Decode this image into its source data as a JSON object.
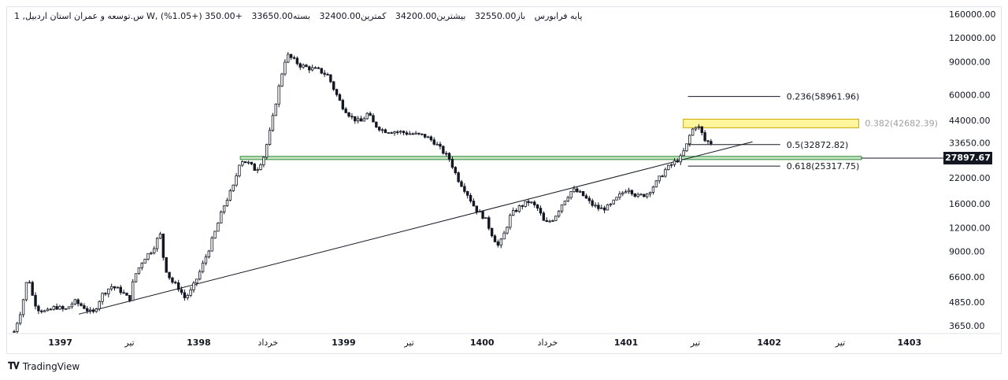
{
  "header": {
    "title": "1 ,س.توسعه و عمران استان اردبیل W, پایه فرابورس",
    "open": "باز32550.00",
    "high": "بیشترین34200.00",
    "low": "کمترین32400.00",
    "close": "بسته33650.00",
    "change": "+350.00 (+1.05%)"
  },
  "brand": {
    "name": "TradingView",
    "logo": "TV-logo-icon"
  },
  "price_tag": "27897.67",
  "chart_data": {
    "type": "candlestick",
    "title": "",
    "y_scale": "log",
    "y_ticks": [
      "160000.00",
      "120000.00",
      "90000.00",
      "60000.00",
      "44000.00",
      "33650.00",
      "22000.00",
      "16000.00",
      "12000.00",
      "9000.00",
      "6600.00",
      "4850.00",
      "3650.00"
    ],
    "y_tick_values": [
      160000,
      120000,
      90000,
      60000,
      44000,
      33650,
      22000,
      16000,
      12000,
      9000,
      6600,
      4850,
      3650
    ],
    "x_ticks": [
      {
        "label": "1397",
        "t": 0.05,
        "bold": true
      },
      {
        "label": "تیر",
        "t": 0.125,
        "bold": false
      },
      {
        "label": "1398",
        "t": 0.2,
        "bold": true
      },
      {
        "label": "خرداد",
        "t": 0.275,
        "bold": false
      },
      {
        "label": "1399",
        "t": 0.357,
        "bold": true
      },
      {
        "label": "تیر",
        "t": 0.428,
        "bold": false
      },
      {
        "label": "1400",
        "t": 0.507,
        "bold": true
      },
      {
        "label": "خرداد",
        "t": 0.578,
        "bold": false
      },
      {
        "label": "1401",
        "t": 0.663,
        "bold": true
      },
      {
        "label": "تیر",
        "t": 0.738,
        "bold": false
      },
      {
        "label": "1402",
        "t": 0.818,
        "bold": true
      },
      {
        "label": "تیر",
        "t": 0.895,
        "bold": false
      },
      {
        "label": "1403",
        "t": 0.97,
        "bold": true
      }
    ],
    "last_price": 27897.67,
    "fibonacci": [
      {
        "label": "0.236(58961.96)",
        "value": 58961.96,
        "t_start": 0.73,
        "t_end": 0.83,
        "highlight": false
      },
      {
        "label": "0.382(42682.39)",
        "value": 42682.39,
        "t_start": 0.725,
        "t_end": 0.915,
        "highlight": true
      },
      {
        "label": "0.5(32872.82)",
        "value": 32872.82,
        "t_start": 0.73,
        "t_end": 0.83,
        "highlight": false
      },
      {
        "label": "0.618(25317.75)",
        "value": 25317.75,
        "t_start": 0.73,
        "t_end": 0.83,
        "highlight": false
      }
    ],
    "support_zone": {
      "low": 27400,
      "high": 28500,
      "t_start": 0.245,
      "t_end": 0.918
    },
    "trendline": {
      "t1": 0.07,
      "v1": 4200,
      "t2": 0.8,
      "v2": 34000
    },
    "price_path": [
      [
        0.0,
        3400
      ],
      [
        0.008,
        4500
      ],
      [
        0.015,
        6800
      ],
      [
        0.02,
        5200
      ],
      [
        0.025,
        4500
      ],
      [
        0.035,
        4300
      ],
      [
        0.045,
        4600
      ],
      [
        0.055,
        4400
      ],
      [
        0.065,
        4900
      ],
      [
        0.075,
        4600
      ],
      [
        0.085,
        4200
      ],
      [
        0.095,
        5300
      ],
      [
        0.105,
        5900
      ],
      [
        0.115,
        5600
      ],
      [
        0.125,
        5000
      ],
      [
        0.13,
        6600
      ],
      [
        0.14,
        8200
      ],
      [
        0.15,
        9200
      ],
      [
        0.158,
        11200
      ],
      [
        0.163,
        7500
      ],
      [
        0.17,
        6300
      ],
      [
        0.178,
        5800
      ],
      [
        0.185,
        5100
      ],
      [
        0.192,
        5600
      ],
      [
        0.2,
        6800
      ],
      [
        0.21,
        9000
      ],
      [
        0.218,
        11500
      ],
      [
        0.228,
        16000
      ],
      [
        0.238,
        20000
      ],
      [
        0.245,
        27500
      ],
      [
        0.255,
        26000
      ],
      [
        0.262,
        24000
      ],
      [
        0.27,
        28000
      ],
      [
        0.278,
        40000
      ],
      [
        0.285,
        60000
      ],
      [
        0.29,
        78000
      ],
      [
        0.295,
        98000
      ],
      [
        0.3,
        94000
      ],
      [
        0.31,
        86000
      ],
      [
        0.32,
        83000
      ],
      [
        0.33,
        81000
      ],
      [
        0.34,
        76000
      ],
      [
        0.348,
        62000
      ],
      [
        0.355,
        53000
      ],
      [
        0.365,
        46000
      ],
      [
        0.375,
        43000
      ],
      [
        0.383,
        48000
      ],
      [
        0.39,
        42000
      ],
      [
        0.4,
        39000
      ],
      [
        0.415,
        38500
      ],
      [
        0.43,
        37500
      ],
      [
        0.445,
        36500
      ],
      [
        0.455,
        34000
      ],
      [
        0.465,
        30000
      ],
      [
        0.472,
        27500
      ],
      [
        0.48,
        22000
      ],
      [
        0.49,
        18500
      ],
      [
        0.5,
        15000
      ],
      [
        0.51,
        13500
      ],
      [
        0.518,
        11000
      ],
      [
        0.525,
        9500
      ],
      [
        0.532,
        11500
      ],
      [
        0.538,
        14000
      ],
      [
        0.548,
        15500
      ],
      [
        0.558,
        16500
      ],
      [
        0.568,
        15000
      ],
      [
        0.575,
        12500
      ],
      [
        0.585,
        13500
      ],
      [
        0.595,
        16500
      ],
      [
        0.605,
        19000
      ],
      [
        0.615,
        18000
      ],
      [
        0.625,
        16000
      ],
      [
        0.635,
        15000
      ],
      [
        0.645,
        15500
      ],
      [
        0.655,
        17500
      ],
      [
        0.665,
        19500
      ],
      [
        0.675,
        17500
      ],
      [
        0.685,
        18000
      ],
      [
        0.695,
        20500
      ],
      [
        0.705,
        24000
      ],
      [
        0.715,
        26500
      ],
      [
        0.722,
        28000
      ],
      [
        0.728,
        32000
      ],
      [
        0.733,
        38000
      ],
      [
        0.738,
        41500
      ],
      [
        0.743,
        40000
      ],
      [
        0.748,
        34500
      ],
      [
        0.755,
        33650
      ]
    ]
  }
}
